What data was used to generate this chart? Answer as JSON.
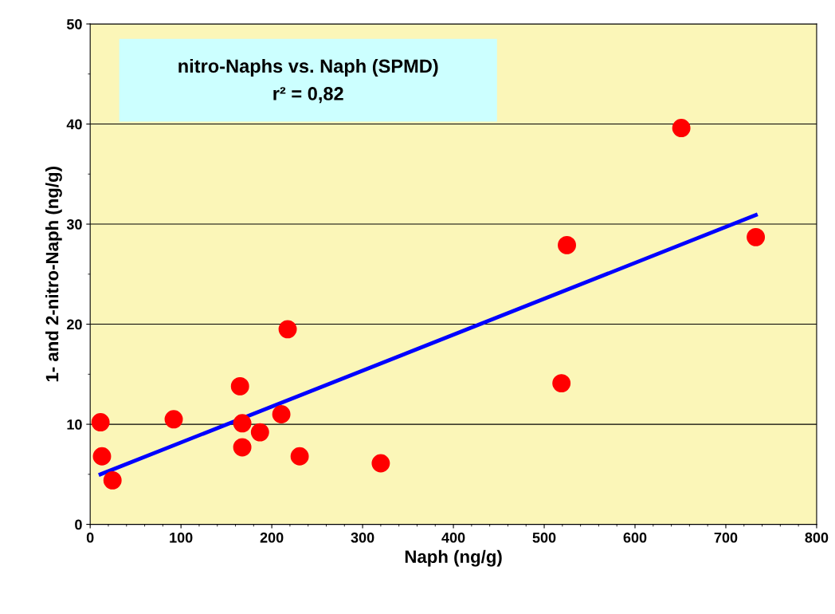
{
  "chart_data": {
    "type": "scatter",
    "title": "nitro-Naphs vs. Naph (SPMD)",
    "annotations": [
      "r² = 0,82"
    ],
    "xlabel": "Naph (ng/g)",
    "ylabel": "1- and 2-nitro-Naph (ng/g)",
    "series": [
      {
        "color": "#ff0000",
        "x": [
          11.4,
          13,
          24.6,
          92,
          165,
          167.5,
          167.5,
          187,
          210.5,
          217.5,
          230.7,
          320,
          519,
          525,
          651,
          733
        ],
        "values": [
          10.2,
          6.8,
          4.4,
          10.5,
          13.8,
          10.1,
          7.7,
          9.2,
          11.0,
          19.5,
          6.8,
          6.1,
          14.1,
          27.9,
          39.6,
          28.7
        ]
      },
      {
        "type": "line",
        "marker": "none",
        "color": "#0000ff",
        "x": [
          11.4,
          733
        ],
        "values": [
          5.0,
          30.9
        ]
      }
    ],
    "xlim": [
      0,
      800
    ],
    "xticks": [
      0,
      100,
      200,
      300,
      400,
      500,
      600,
      700,
      800
    ],
    "ylim": [
      0,
      50
    ],
    "yticks": [
      0,
      10,
      20,
      30,
      40,
      50
    ],
    "grid": "y",
    "marker": "circle",
    "legend": false
  }
}
